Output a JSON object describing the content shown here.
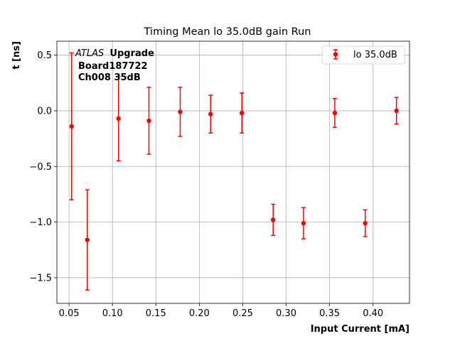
{
  "chart_data": {
    "type": "scatter",
    "title": "Timing Mean lo 35.0dB gain Run",
    "xlabel": "Input Current [mA]",
    "ylabel": "t [ns]",
    "xlim": [
      0.036,
      0.442
    ],
    "ylim": [
      -1.73,
      0.625
    ],
    "x_ticks": [
      0.05,
      0.1,
      0.15,
      0.2,
      0.25,
      0.3,
      0.35,
      0.4
    ],
    "x_tick_labels": [
      "0.05",
      "0.10",
      "0.15",
      "0.20",
      "0.25",
      "0.30",
      "0.35",
      "0.40"
    ],
    "y_ticks": [
      -1.5,
      -1.0,
      -0.5,
      0.0,
      0.5
    ],
    "y_tick_labels": [
      "−1.5",
      "−1.0",
      "−0.5",
      "0.0",
      "0.5"
    ],
    "grid": true,
    "legend_position": "top-right",
    "color": "#ff0000",
    "annotation": {
      "experiment": "ATLAS",
      "experiment_suffix": "Upgrade",
      "line2": "Board187722",
      "line3": "Ch008 35dB"
    },
    "series": [
      {
        "name": "lo 35.0dB",
        "points": [
          {
            "x": 0.053,
            "y": -0.14,
            "err": 0.66
          },
          {
            "x": 0.071,
            "y": -1.16,
            "err": 0.45
          },
          {
            "x": 0.107,
            "y": -0.07,
            "err": 0.38
          },
          {
            "x": 0.142,
            "y": -0.09,
            "err": 0.3
          },
          {
            "x": 0.178,
            "y": -0.01,
            "err": 0.22
          },
          {
            "x": 0.213,
            "y": -0.03,
            "err": 0.17
          },
          {
            "x": 0.249,
            "y": -0.02,
            "err": 0.18
          },
          {
            "x": 0.285,
            "y": -0.98,
            "err": 0.14
          },
          {
            "x": 0.32,
            "y": -1.01,
            "err": 0.14
          },
          {
            "x": 0.356,
            "y": -0.02,
            "err": 0.13
          },
          {
            "x": 0.391,
            "y": -1.01,
            "err": 0.12
          },
          {
            "x": 0.427,
            "y": 0.0,
            "err": 0.12
          }
        ]
      }
    ]
  }
}
